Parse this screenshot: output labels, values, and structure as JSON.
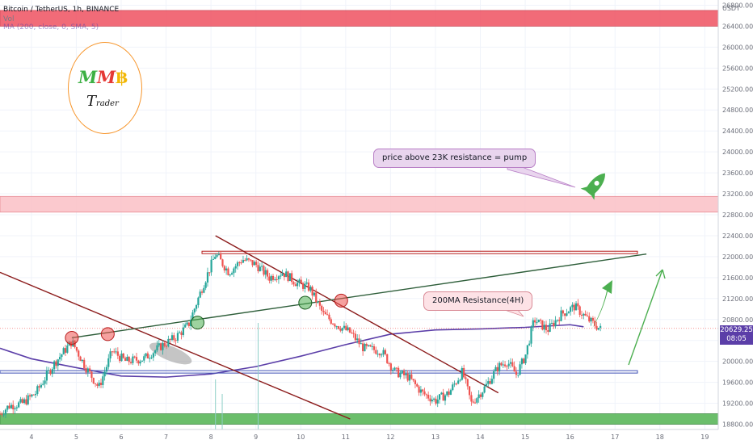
{
  "header": {
    "symbol_line": "Bitcoin / TetherUS, 1h, BINANCE",
    "volume_label": "Vol",
    "ma_legend": "MA (200, close, 0, SMA, 5)"
  },
  "logo": {
    "m1": "M",
    "m2": "M",
    "coin": "฿",
    "t": "T",
    "rader": "rader"
  },
  "callouts": {
    "pump": "price above 23K resistance = pump",
    "ma_resistance": "200MA Resistance(4H)"
  },
  "price_tag": {
    "price": "20629.25",
    "countdown": "08:05"
  },
  "axis": {
    "currency": "USDT"
  },
  "colors": {
    "up": "#26a69a",
    "down": "#ef5350",
    "ma": "#5b3ea8",
    "resistance_zone": "#f05b6a",
    "zone_light": "#fbc4c9",
    "support_zone": "#5cb85c",
    "blue_line": "#3f51b5"
  },
  "chart_data": {
    "type": "candlestick",
    "title": "Bitcoin / TetherUS, 1h, BINANCE",
    "xlabel": "",
    "ylabel": "",
    "x_ticks": [
      "4",
      "5",
      "6",
      "7",
      "8",
      "9",
      "10",
      "11",
      "12",
      "13",
      "14",
      "15",
      "16",
      "17",
      "18",
      "19"
    ],
    "y_ticks": [
      18800,
      19200,
      19600,
      20000,
      20400,
      20800,
      21200,
      21600,
      22000,
      22400,
      22800,
      23200,
      23600,
      24000,
      24400,
      24800,
      25200,
      25600,
      26000,
      26400,
      26800
    ],
    "ylim": [
      18700,
      26900
    ],
    "xlim": [
      3.3,
      19.3
    ],
    "last_price": 20629.25,
    "ma200_path": [
      [
        3.3,
        20250
      ],
      [
        4,
        20050
      ],
      [
        5,
        19880
      ],
      [
        6,
        19720
      ],
      [
        7,
        19700
      ],
      [
        8,
        19760
      ],
      [
        9,
        19900
      ],
      [
        10,
        20100
      ],
      [
        11,
        20320
      ],
      [
        12,
        20520
      ],
      [
        13,
        20600
      ],
      [
        14,
        20620
      ],
      [
        15,
        20650
      ],
      [
        16,
        20700
      ],
      [
        16.3,
        20660
      ]
    ],
    "price_path": [
      [
        3.3,
        19000
      ],
      [
        3.5,
        19150
      ],
      [
        3.8,
        19200
      ],
      [
        4.1,
        19400
      ],
      [
        4.5,
        19950
      ],
      [
        4.9,
        20380
      ],
      [
        5.2,
        19900
      ],
      [
        5.5,
        19500
      ],
      [
        5.8,
        20200
      ],
      [
        6.1,
        20000
      ],
      [
        6.5,
        20050
      ],
      [
        6.9,
        20300
      ],
      [
        7.2,
        20450
      ],
      [
        7.5,
        20700
      ],
      [
        7.8,
        21400
      ],
      [
        8.1,
        22050
      ],
      [
        8.4,
        21700
      ],
      [
        8.7,
        21950
      ],
      [
        9.0,
        21850
      ],
      [
        9.3,
        21600
      ],
      [
        9.6,
        21700
      ],
      [
        9.9,
        21500
      ],
      [
        10.2,
        21400
      ],
      [
        10.5,
        20900
      ],
      [
        10.8,
        20700
      ],
      [
        11.1,
        20550
      ],
      [
        11.4,
        20250
      ],
      [
        11.8,
        20200
      ],
      [
        12.1,
        19800
      ],
      [
        12.4,
        19700
      ],
      [
        12.7,
        19400
      ],
      [
        13.0,
        19250
      ],
      [
        13.3,
        19400
      ],
      [
        13.6,
        19800
      ],
      [
        13.8,
        19200
      ],
      [
        14.1,
        19500
      ],
      [
        14.4,
        19900
      ],
      [
        14.6,
        20000
      ],
      [
        14.8,
        19750
      ],
      [
        15.0,
        20100
      ],
      [
        15.2,
        20800
      ],
      [
        15.5,
        20600
      ],
      [
        15.8,
        20900
      ],
      [
        16.1,
        21050
      ],
      [
        16.4,
        20800
      ],
      [
        16.7,
        20600
      ]
    ],
    "zones": [
      {
        "name": "resistance-zone",
        "low": 26400,
        "high": 26700
      },
      {
        "name": "23k-zone",
        "low": 22850,
        "high": 23150
      },
      {
        "name": "support-zone",
        "low": 18800,
        "high": 19000
      }
    ],
    "horizontal_lines": [
      {
        "name": "top-red-line",
        "y": 22080,
        "x0": 7.8,
        "x1": 17.5
      },
      {
        "name": "support-blue-line",
        "y": 19800,
        "x0": 3.3,
        "x1": 17.5
      }
    ],
    "trendlines": [
      {
        "name": "descending-line-1",
        "from": [
          3.3,
          21700
        ],
        "to": [
          11.1,
          18900
        ]
      },
      {
        "name": "descending-line-2",
        "from": [
          8.1,
          22400
        ],
        "to": [
          14.4,
          19400
        ]
      },
      {
        "name": "ascending-line",
        "from": [
          4.9,
          20450
        ],
        "to": [
          17.7,
          22050
        ]
      }
    ],
    "markers": [
      {
        "x": 4.9,
        "y": 20450,
        "color": "#ef5350"
      },
      {
        "x": 5.7,
        "y": 20520,
        "color": "#ef5350"
      },
      {
        "x": 7.7,
        "y": 20740,
        "color": "#4caf50"
      },
      {
        "x": 10.1,
        "y": 21120,
        "color": "#4caf50"
      },
      {
        "x": 10.9,
        "y": 21160,
        "color": "#ef5350"
      }
    ]
  }
}
